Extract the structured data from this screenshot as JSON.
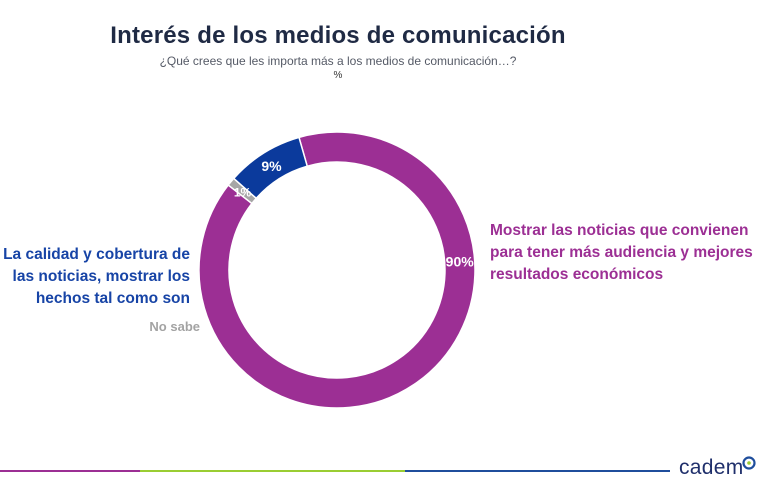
{
  "chart_data": {
    "type": "pie",
    "title": "Interés de los medios de comunicación",
    "subtitle": "¿Qué crees que les importa más a los medios de comunicación…?",
    "unit": "%",
    "slices": [
      {
        "label": "Mostrar las noticias que convienen para tener más audiencia y mejores resultados económicos",
        "value": 90,
        "value_label": "90%",
        "color": "#9c2f94"
      },
      {
        "label": "No sabe",
        "value": 1,
        "value_label": "1%",
        "color": "#a6a6a6"
      },
      {
        "label": "La calidad y cobertura de las noticias, mostrar los hechos tal como son",
        "value": 9,
        "value_label": "9%",
        "color": "#0b3a9c"
      }
    ]
  },
  "brand": {
    "logo_text": "cadem"
  },
  "colors": {
    "footer": [
      "#9c2f94",
      "#9acd32",
      "#1f4e9c"
    ]
  }
}
